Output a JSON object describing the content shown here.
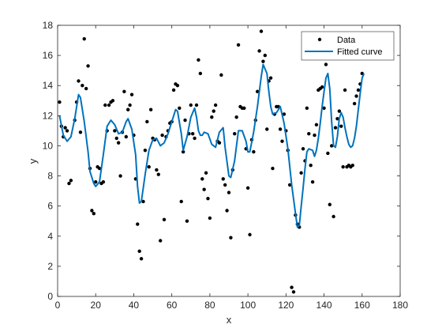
{
  "chart_data": {
    "type": "scatter",
    "title": "",
    "xlabel": "x",
    "ylabel": "y",
    "xlim": [
      0,
      180
    ],
    "ylim": [
      0,
      18
    ],
    "xticks": [
      0,
      20,
      40,
      60,
      80,
      100,
      120,
      140,
      160,
      180
    ],
    "yticks": [
      0,
      2,
      4,
      6,
      8,
      10,
      12,
      14,
      16,
      18
    ],
    "grid": false,
    "legend_position": "top-right",
    "series": [
      {
        "name": "Data",
        "kind": "scatter",
        "color": "#000000",
        "points": [
          [
            1,
            12.9
          ],
          [
            2,
            11.3
          ],
          [
            3,
            10.6
          ],
          [
            4,
            11.2
          ],
          [
            5,
            11.0
          ],
          [
            6,
            7.5
          ],
          [
            7,
            7.7
          ],
          [
            9,
            11.7
          ],
          [
            10,
            12.9
          ],
          [
            11,
            14.3
          ],
          [
            12,
            10.9
          ],
          [
            13,
            14.0
          ],
          [
            14,
            17.1
          ],
          [
            15,
            13.8
          ],
          [
            16,
            15.3
          ],
          [
            17,
            8.5
          ],
          [
            18,
            5.7
          ],
          [
            19,
            5.5
          ],
          [
            20,
            7.6
          ],
          [
            21,
            8.6
          ],
          [
            22,
            8.5
          ],
          [
            23,
            7.5
          ],
          [
            24,
            7.6
          ],
          [
            25,
            12.7
          ],
          [
            26,
            11.0
          ],
          [
            27,
            12.7
          ],
          [
            28,
            12.9
          ],
          [
            29,
            13.0
          ],
          [
            30,
            11.0
          ],
          [
            31,
            10.5
          ],
          [
            32,
            10.2
          ],
          [
            33,
            8.0
          ],
          [
            34,
            10.9
          ],
          [
            35,
            13.6
          ],
          [
            36,
            10.6
          ],
          [
            37,
            12.4
          ],
          [
            38,
            12.7
          ],
          [
            39,
            13.4
          ],
          [
            40,
            10.7
          ],
          [
            41,
            7.8
          ],
          [
            42,
            4.8
          ],
          [
            43,
            3.0
          ],
          [
            44,
            2.5
          ],
          [
            45,
            6.3
          ],
          [
            46,
            9.7
          ],
          [
            47,
            11.6
          ],
          [
            48,
            8.6
          ],
          [
            49,
            12.4
          ],
          [
            50,
            10.5
          ],
          [
            51,
            10.4
          ],
          [
            52,
            8.4
          ],
          [
            53,
            8.1
          ],
          [
            54,
            3.7
          ],
          [
            55,
            10.7
          ],
          [
            56,
            5.1
          ],
          [
            57,
            10.6
          ],
          [
            58,
            11.0
          ],
          [
            59,
            11.5
          ],
          [
            60,
            11.6
          ],
          [
            61,
            13.7
          ],
          [
            62,
            14.1
          ],
          [
            63,
            14.0
          ],
          [
            64,
            12.5
          ],
          [
            65,
            6.3
          ],
          [
            66,
            9.6
          ],
          [
            67,
            11.7
          ],
          [
            68,
            5.0
          ],
          [
            69,
            10.8
          ],
          [
            70,
            12.7
          ],
          [
            71,
            10.8
          ],
          [
            72,
            10.5
          ],
          [
            73,
            12.7
          ],
          [
            74,
            15.7
          ],
          [
            75,
            14.8
          ],
          [
            76,
            7.8
          ],
          [
            77,
            7.1
          ],
          [
            78,
            8.2
          ],
          [
            79,
            6.5
          ],
          [
            80,
            5.2
          ],
          [
            81,
            11.9
          ],
          [
            82,
            12.3
          ],
          [
            83,
            12.7
          ],
          [
            84,
            10.3
          ],
          [
            85,
            10.2
          ],
          [
            86,
            14.7
          ],
          [
            87,
            7.8
          ],
          [
            88,
            7.4
          ],
          [
            89,
            5.7
          ],
          [
            90,
            6.9
          ],
          [
            91,
            3.9
          ],
          [
            92,
            8.4
          ],
          [
            93,
            10.8
          ],
          [
            94,
            11.9
          ],
          [
            95,
            16.7
          ],
          [
            96,
            12.6
          ],
          [
            97,
            12.5
          ],
          [
            98,
            12.5
          ],
          [
            99,
            9.8
          ],
          [
            100,
            7.2
          ],
          [
            101,
            4.1
          ],
          [
            102,
            10.4
          ],
          [
            103,
            9.6
          ],
          [
            104,
            11.7
          ],
          [
            105,
            13.6
          ],
          [
            106,
            16.3
          ],
          [
            107,
            17.6
          ],
          [
            108,
            15.6
          ],
          [
            109,
            16.0
          ],
          [
            110,
            11.1
          ],
          [
            111,
            14.3
          ],
          [
            112,
            14.5
          ],
          [
            113,
            8.5
          ],
          [
            114,
            12.1
          ],
          [
            115,
            12.6
          ],
          [
            116,
            12.6
          ],
          [
            117,
            11.1
          ],
          [
            118,
            10.3
          ],
          [
            119,
            12.1
          ],
          [
            120,
            11.0
          ],
          [
            121,
            9.7
          ],
          [
            122,
            7.4
          ],
          [
            123,
            0.6
          ],
          [
            124,
            0.3
          ],
          [
            125,
            5.4
          ],
          [
            126,
            4.8
          ],
          [
            127,
            4.6
          ],
          [
            128,
            8.2
          ],
          [
            129,
            9.8
          ],
          [
            130,
            9.0
          ],
          [
            131,
            12.5
          ],
          [
            132,
            10.8
          ],
          [
            133,
            8.7
          ],
          [
            134,
            7.6
          ],
          [
            135,
            10.7
          ],
          [
            136,
            11.4
          ],
          [
            137,
            13.7
          ],
          [
            138,
            13.8
          ],
          [
            139,
            13.9
          ],
          [
            140,
            12.5
          ],
          [
            141,
            15.4
          ],
          [
            142,
            9.5
          ],
          [
            143,
            6.1
          ],
          [
            144,
            10.0
          ],
          [
            145,
            5.3
          ],
          [
            146,
            11.2
          ],
          [
            147,
            11.8
          ],
          [
            148,
            12.3
          ],
          [
            149,
            11.3
          ],
          [
            150,
            8.6
          ],
          [
            151,
            13.7
          ],
          [
            152,
            8.6
          ],
          [
            153,
            8.7
          ],
          [
            154,
            8.6
          ],
          [
            155,
            8.7
          ],
          [
            156,
            12.8
          ],
          [
            157,
            13.3
          ],
          [
            158,
            13.7
          ],
          [
            159,
            14.1
          ],
          [
            160,
            14.8
          ]
        ]
      },
      {
        "name": "Fitted curve",
        "kind": "line",
        "color": "#0072BD",
        "points": [
          [
            1,
            12.0
          ],
          [
            3,
            10.7
          ],
          [
            5,
            10.3
          ],
          [
            7,
            10.6
          ],
          [
            9,
            11.8
          ],
          [
            11,
            13.4
          ],
          [
            12,
            13.2
          ],
          [
            14,
            11.6
          ],
          [
            16,
            9.6
          ],
          [
            17,
            8.3
          ],
          [
            19,
            7.5
          ],
          [
            20,
            7.3
          ],
          [
            22,
            7.6
          ],
          [
            24,
            9.4
          ],
          [
            26,
            11.3
          ],
          [
            28,
            11.7
          ],
          [
            30,
            11.4
          ],
          [
            32,
            10.8
          ],
          [
            34,
            10.9
          ],
          [
            36,
            11.6
          ],
          [
            37,
            11.8
          ],
          [
            39,
            11.1
          ],
          [
            41,
            9.4
          ],
          [
            42,
            7.3
          ],
          [
            43,
            6.2
          ],
          [
            44,
            6.3
          ],
          [
            46,
            8.1
          ],
          [
            48,
            9.7
          ],
          [
            50,
            10.4
          ],
          [
            52,
            10.5
          ],
          [
            54,
            10.0
          ],
          [
            56,
            10.2
          ],
          [
            58,
            10.8
          ],
          [
            60,
            11.6
          ],
          [
            62,
            12.4
          ],
          [
            63,
            12.3
          ],
          [
            65,
            10.8
          ],
          [
            66,
            9.7
          ],
          [
            68,
            10.6
          ],
          [
            70,
            11.9
          ],
          [
            72,
            12.5
          ],
          [
            73,
            11.9
          ],
          [
            74,
            11.0
          ],
          [
            75,
            10.7
          ],
          [
            76,
            10.7
          ],
          [
            77,
            10.9
          ],
          [
            79,
            10.8
          ],
          [
            81,
            10.1
          ],
          [
            83,
            9.9
          ],
          [
            85,
            10.9
          ],
          [
            87,
            11.2
          ],
          [
            88,
            9.9
          ],
          [
            90,
            8.0
          ],
          [
            91,
            7.9
          ],
          [
            93,
            9.0
          ],
          [
            95,
            11.0
          ],
          [
            97,
            11.0
          ],
          [
            99,
            10.3
          ],
          [
            100,
            9.6
          ],
          [
            101,
            9.6
          ],
          [
            103,
            10.9
          ],
          [
            105,
            12.6
          ],
          [
            107,
            14.6
          ],
          [
            108,
            15.4
          ],
          [
            110,
            14.8
          ],
          [
            111,
            13.6
          ],
          [
            112,
            12.6
          ],
          [
            113,
            12.1
          ],
          [
            115,
            12.2
          ],
          [
            117,
            12.6
          ],
          [
            119,
            11.5
          ],
          [
            121,
            9.8
          ],
          [
            123,
            7.4
          ],
          [
            125,
            5.5
          ],
          [
            126,
            4.6
          ],
          [
            127,
            4.7
          ],
          [
            128,
            6.0
          ],
          [
            129,
            7.2
          ],
          [
            130,
            8.5
          ],
          [
            131,
            9.6
          ],
          [
            132,
            9.8
          ],
          [
            134,
            9.7
          ],
          [
            135,
            9.3
          ],
          [
            136,
            9.7
          ],
          [
            137,
            10.5
          ],
          [
            138,
            11.5
          ],
          [
            139,
            12.6
          ],
          [
            140,
            13.6
          ],
          [
            141,
            14.5
          ],
          [
            142,
            14.8
          ],
          [
            143,
            13.8
          ],
          [
            144,
            11.6
          ],
          [
            145,
            10.0
          ],
          [
            146,
            9.9
          ],
          [
            147,
            10.6
          ],
          [
            148,
            11.8
          ],
          [
            149,
            12.2
          ],
          [
            150,
            11.9
          ],
          [
            151,
            11.2
          ],
          [
            152,
            10.6
          ],
          [
            153,
            10.1
          ],
          [
            154,
            9.9
          ],
          [
            155,
            10.0
          ],
          [
            156,
            10.5
          ],
          [
            157,
            11.3
          ],
          [
            158,
            12.4
          ],
          [
            159,
            13.5
          ],
          [
            160,
            14.5
          ],
          [
            161,
            14.8
          ]
        ]
      }
    ]
  }
}
